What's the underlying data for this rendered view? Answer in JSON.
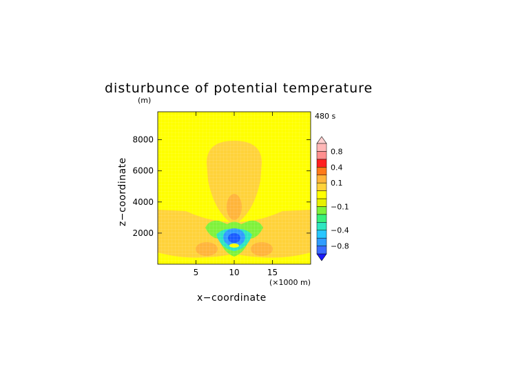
{
  "chart_data": {
    "type": "heatmap",
    "title": "disturbunce of potential temperature",
    "y_unit": "(m)",
    "time_label": "480 s",
    "xlabel": "x−coordinate",
    "x_unit": "(×1000 m)",
    "ylabel": "z−coordinate",
    "xlim": [
      0,
      20
    ],
    "ylim": [
      0,
      9800
    ],
    "x_ticks": [
      5,
      10,
      15
    ],
    "x_tick_labels": [
      "5",
      "10",
      "15"
    ],
    "y_ticks": [
      2000,
      4000,
      6000,
      8000
    ],
    "y_tick_labels": [
      "2000",
      "4000",
      "6000",
      "8000"
    ],
    "colorbar": {
      "levels": [
        -1.0,
        -0.8,
        -0.6,
        -0.4,
        -0.3,
        -0.2,
        -0.1,
        -0.05,
        0.05,
        0.1,
        0.2,
        0.4,
        0.6,
        0.8,
        1.0
      ],
      "colors": [
        "#1a1aff",
        "#3a6cff",
        "#2f9cff",
        "#27c6ff",
        "#2ee6c0",
        "#38f07a",
        "#7ff23a",
        "#e8f000",
        "#ffff00",
        "#ffd23a",
        "#ffb43a",
        "#ff7a1a",
        "#ff2020",
        "#ff8f8f",
        "#ffb7b7",
        "#ffd0d0"
      ],
      "labels": [
        "−0.8",
        "−0.4",
        "−0.1",
        "0.1",
        "0.4",
        "0.8"
      ],
      "label_values": [
        -0.8,
        -0.4,
        -0.1,
        0.1,
        0.4,
        0.8
      ]
    },
    "field_features": [
      {
        "kind": "positive plume",
        "x": 10,
        "z_range": [
          2900,
          8200
        ],
        "value": 0.1
      },
      {
        "kind": "positive core",
        "x": 10,
        "z": 4100,
        "value": 0.2
      },
      {
        "kind": "positive lobes",
        "x": [
          6.5,
          13.5
        ],
        "z": 1300,
        "value": 0.2
      },
      {
        "kind": "positive wings",
        "x": [
          0,
          20
        ],
        "z_range": [
          0,
          3600
        ],
        "value": 0.1
      },
      {
        "kind": "negative core",
        "x": 10,
        "z": 1900,
        "value": -0.4
      }
    ]
  }
}
